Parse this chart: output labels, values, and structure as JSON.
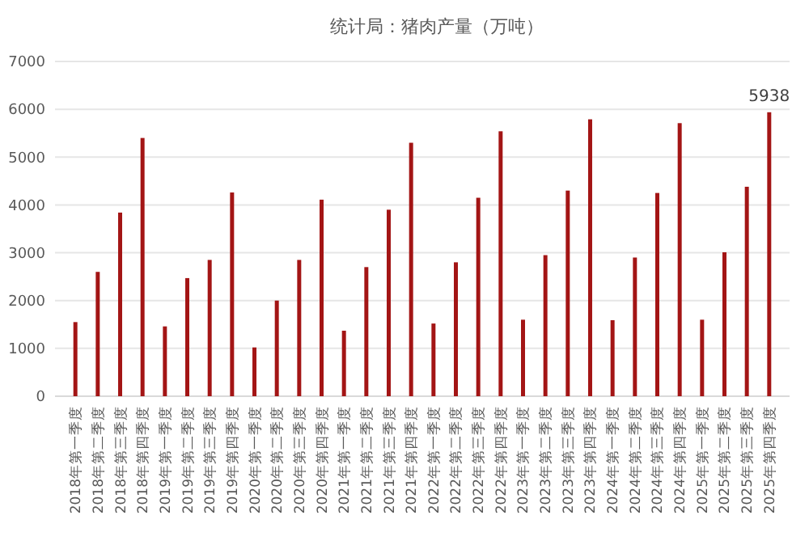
{
  "chart_data": {
    "type": "bar",
    "title": "统计局：猪肉产量（万吨）",
    "categories": [
      "2018年第一季度",
      "2018年第二季度",
      "2018年第三季度",
      "2018年第四季度",
      "2019年第一季度",
      "2019年第二季度",
      "2019年第三季度",
      "2019年第四季度",
      "2020年第一季度",
      "2020年第二季度",
      "2020年第三季度",
      "2020年第四季度",
      "2021年第一季度",
      "2021年第二季度",
      "2021年第三季度",
      "2021年第四季度",
      "2022年第一季度",
      "2022年第二季度",
      "2022年第三季度",
      "2022年第四季度",
      "2023年第一季度",
      "2023年第二季度",
      "2023年第三季度",
      "2023年第四季度",
      "2024年第一季度",
      "2024年第二季度",
      "2024年第三季度",
      "2024年第四季度",
      "2025年第一季度",
      "2025年第二季度",
      "2025年第三季度",
      "2025年第四季度"
    ],
    "values": [
      1550,
      2600,
      3840,
      5400,
      1460,
      2470,
      2850,
      4260,
      1020,
      2000,
      2850,
      4110,
      1370,
      2700,
      3900,
      5300,
      1520,
      2800,
      4150,
      5540,
      1600,
      2950,
      4300,
      5790,
      1590,
      2900,
      4250,
      5710,
      1600,
      3010,
      4380,
      5938
    ],
    "value_labels": [
      null,
      null,
      null,
      null,
      null,
      null,
      null,
      null,
      null,
      null,
      null,
      null,
      null,
      null,
      null,
      null,
      null,
      null,
      null,
      null,
      null,
      null,
      null,
      null,
      null,
      null,
      null,
      null,
      null,
      null,
      null,
      "5938"
    ],
    "color": "#a31515",
    "ylim": [
      0,
      7000
    ],
    "yticks": [
      0,
      1000,
      2000,
      3000,
      4000,
      5000,
      6000,
      7000
    ],
    "grid": "y"
  }
}
